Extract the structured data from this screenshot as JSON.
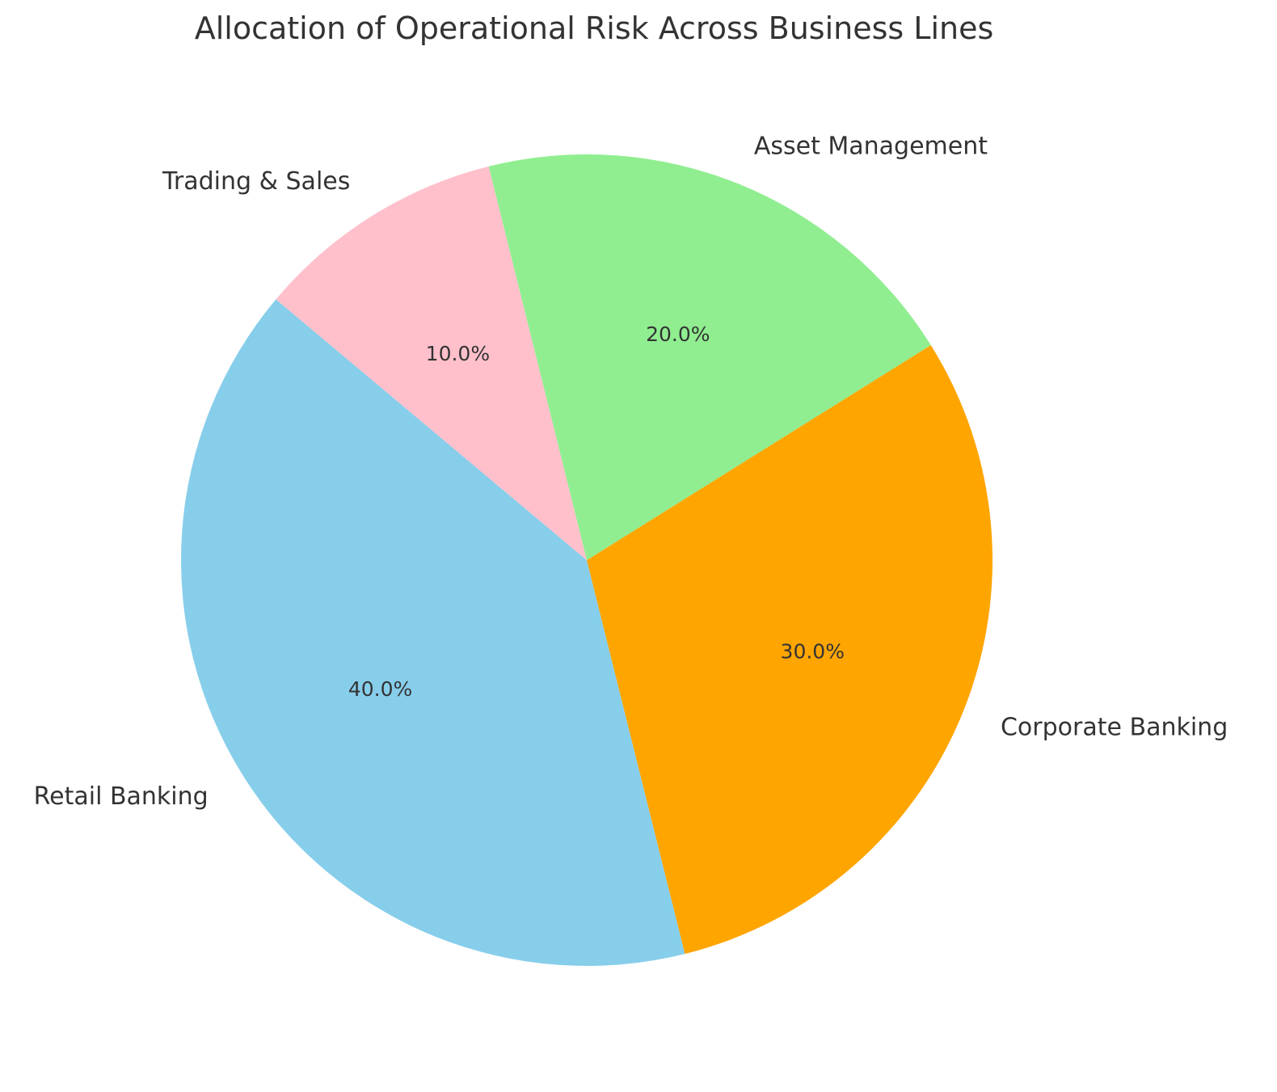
{
  "chart_data": {
    "type": "pie",
    "title": "Allocation of Operational Risk Across Business Lines",
    "slices": [
      {
        "label": "Retail Banking",
        "value": 40,
        "pct_label": "40.0%",
        "color": "#87CEEB"
      },
      {
        "label": "Corporate Banking",
        "value": 30,
        "pct_label": "30.0%",
        "color": "#FFA500"
      },
      {
        "label": "Asset Management",
        "value": 20,
        "pct_label": "20.0%",
        "color": "#90EE90"
      },
      {
        "label": "Trading & Sales",
        "value": 10,
        "pct_label": "10.0%",
        "color": "#FFC0CB"
      }
    ],
    "start_angle_deg": 140,
    "direction": "counterclockwise",
    "legend": "none"
  }
}
